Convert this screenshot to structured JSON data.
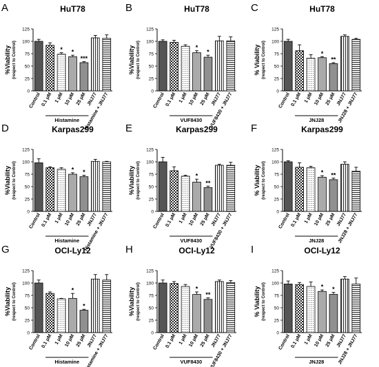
{
  "figure": {
    "ylabel_line1": "%Viability",
    "ylabel_line2": "(respect to Control)",
    "ylabel_c_line1": "% Viability",
    "yticks": [
      0,
      25,
      50,
      75,
      100,
      125
    ],
    "ylim": [
      0,
      125
    ]
  },
  "chart_data": [
    {
      "panel": "A",
      "type": "bar",
      "title": "HuT78",
      "categories": [
        "Control",
        "0.1 μM",
        "1 μM",
        "10 μM",
        "25 μM",
        "JNJ77",
        "Histamine + JNJ77"
      ],
      "values": [
        100,
        92,
        74,
        69,
        57,
        107,
        106
      ],
      "errors": [
        4,
        5,
        3,
        3,
        2,
        5,
        7
      ],
      "significance": [
        "",
        "",
        "*",
        "*",
        "***",
        "",
        ""
      ],
      "group_label": "Histamine"
    },
    {
      "panel": "B",
      "type": "bar",
      "title": "HuT78",
      "categories": [
        "Control",
        "0.1 μM",
        "1 μM",
        "10 μM",
        "25 μM",
        "JNJ77",
        "VUF8430 + JNJ77"
      ],
      "values": [
        100,
        98,
        90,
        77,
        68,
        101,
        101
      ],
      "errors": [
        3,
        4,
        3,
        4,
        4,
        9,
        8
      ],
      "significance": [
        "",
        "",
        "",
        "*",
        "*",
        "",
        ""
      ],
      "group_label": "VUF8430"
    },
    {
      "panel": "C",
      "type": "bar",
      "title": "HuT78",
      "categories": [
        "Control",
        "0.1 μM",
        "1 μM",
        "10 μM",
        "25 μM",
        "JNJ77",
        "JNJ28 + JNJ77"
      ],
      "values": [
        100,
        81,
        66,
        67,
        55,
        110,
        104
      ],
      "errors": [
        4,
        12,
        7,
        2,
        2,
        3,
        2
      ],
      "significance": [
        "",
        "",
        "",
        "*",
        "**",
        "",
        ""
      ],
      "group_label": "JNJ28"
    },
    {
      "panel": "D",
      "type": "bar",
      "title": "Karpas299",
      "categories": [
        "Control",
        "0.1 μM",
        "1 μM",
        "10 μM",
        "25 μM",
        "JNJ77",
        "Histamine + JNJ77"
      ],
      "values": [
        98,
        88,
        85,
        75,
        70,
        101,
        100
      ],
      "errors": [
        8,
        2,
        3,
        3,
        3,
        4,
        1
      ],
      "significance": [
        "",
        "",
        "",
        "*",
        "*",
        "",
        ""
      ],
      "group_label": "Histamine"
    },
    {
      "panel": "E",
      "type": "bar",
      "title": "Karpas299",
      "categories": [
        "Control",
        "0.1 μM",
        "1 μM",
        "10 μM",
        "25 μM",
        "JNJ77",
        "VUF8430 + JNJ77"
      ],
      "values": [
        100,
        82,
        71,
        59,
        48,
        93,
        93
      ],
      "errors": [
        9,
        8,
        2,
        6,
        3,
        2,
        6
      ],
      "significance": [
        "",
        "",
        "",
        "*",
        "**",
        "",
        ""
      ],
      "group_label": "VUF8430"
    },
    {
      "panel": "F",
      "type": "bar",
      "title": "Karpas299",
      "categories": [
        "Control",
        "0.1 μM",
        "1 μM",
        "10 μM",
        "25 μM",
        "JNJ77",
        "JNJ28 + JNJ77"
      ],
      "values": [
        100,
        89,
        88,
        69,
        64,
        95,
        81
      ],
      "errors": [
        2,
        9,
        3,
        3,
        3,
        5,
        8
      ],
      "significance": [
        "",
        "",
        "",
        "*",
        "**",
        "",
        ""
      ],
      "group_label": "JNJ28"
    },
    {
      "panel": "G",
      "type": "bar",
      "title": "OCI-Ly12",
      "categories": [
        "Control",
        "0.1 μM",
        "1 μM",
        "10 μM",
        "25 μM",
        "JNJ77",
        "Histamine + JNJ77"
      ],
      "values": [
        100,
        79,
        68,
        69,
        45,
        108,
        106
      ],
      "errors": [
        6,
        3,
        1,
        10,
        2,
        9,
        11
      ],
      "significance": [
        "",
        "",
        "",
        "*",
        "*",
        "",
        ""
      ],
      "group_label": "Histamine"
    },
    {
      "panel": "H",
      "type": "bar",
      "title": "OCI-Ly12",
      "categories": [
        "Control",
        "0.1 μM",
        "1 μM",
        "10 μM",
        "25 μM",
        "JNJ77",
        "VUF8430 + JNJ77"
      ],
      "values": [
        100,
        99,
        93,
        77,
        67,
        103,
        101
      ],
      "errors": [
        6,
        4,
        4,
        5,
        3,
        3,
        4
      ],
      "significance": [
        "",
        "",
        "",
        "*",
        "**",
        "",
        ""
      ],
      "group_label": "VUF8430"
    },
    {
      "panel": "I",
      "type": "bar",
      "title": "OCI-Ly12",
      "categories": [
        "Control",
        "0.1 μM",
        "1 μM",
        "10 μM",
        "25 μM",
        "JNJ77",
        "JNJ28 + JNJ77"
      ],
      "values": [
        98,
        97,
        93,
        83,
        77,
        108,
        98
      ],
      "errors": [
        6,
        4,
        9,
        3,
        4,
        5,
        12
      ],
      "significance": [
        "",
        "",
        "",
        "*",
        "*",
        "",
        ""
      ],
      "group_label": "JNJ28"
    }
  ]
}
